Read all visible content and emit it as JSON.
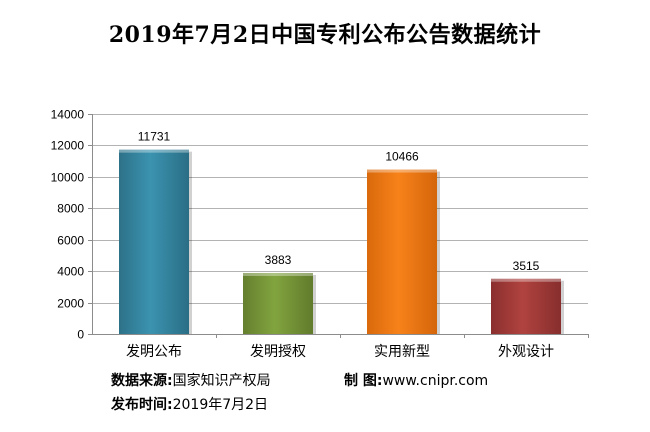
{
  "title": "2019年7月2日中国专利公布公告数据统计",
  "chart_data": {
    "type": "bar",
    "title": "2019年7月2日中国专利公布公告数据统计",
    "categories": [
      "发明公布",
      "发明授权",
      "实用新型",
      "外观设计"
    ],
    "values": [
      11731,
      3883,
      10466,
      3515
    ],
    "colors": [
      "#3a8aa6",
      "#7a9b3a",
      "#f2780f",
      "#a83c3a"
    ],
    "ylim": [
      0,
      14000
    ],
    "yticks": [
      0,
      2000,
      4000,
      6000,
      8000,
      10000,
      12000,
      14000
    ],
    "xlabel": "",
    "ylabel": "",
    "grid": true,
    "legend": "none"
  },
  "footer": {
    "source_label": "数据来源:",
    "source_value": "国家知识产权局",
    "maker_label": "制 图:",
    "maker_value": "www.cnipr.com",
    "date_label": "发布时间:",
    "date_value": "2019年7月2日"
  }
}
